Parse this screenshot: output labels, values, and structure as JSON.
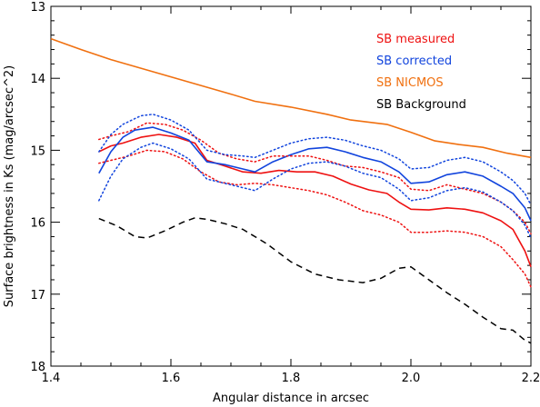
{
  "chart_data": {
    "type": "line",
    "xlabel": "Angular distance in arcsec",
    "ylabel": "Surface brightness in Ks (mag/arcsec^2)",
    "xlim": [
      1.4,
      2.2
    ],
    "ylim": [
      13,
      18
    ],
    "y_inverted": true,
    "x_ticks": [
      1.4,
      1.6,
      1.8,
      2.0,
      2.2
    ],
    "x_tick_labels": [
      "1.4",
      "1.6",
      "1.8",
      "2.0",
      "2.2"
    ],
    "y_ticks": [
      13,
      14,
      15,
      16,
      17,
      18
    ],
    "y_tick_labels": [
      "13",
      "14",
      "15",
      "16",
      "17",
      "18"
    ],
    "grid": false,
    "legend_position": "top-right",
    "series": [
      {
        "name": "SB measured",
        "color": "#ee1111",
        "style": "solid",
        "x": [
          1.48,
          1.5,
          1.52,
          1.55,
          1.58,
          1.61,
          1.64,
          1.66,
          1.69,
          1.72,
          1.75,
          1.78,
          1.81,
          1.84,
          1.87,
          1.9,
          1.93,
          1.96,
          1.98,
          2.0,
          2.03,
          2.06,
          2.09,
          2.12,
          2.15,
          2.17,
          2.19,
          2.2
        ],
        "y": [
          15.02,
          14.94,
          14.9,
          14.82,
          14.78,
          14.82,
          14.9,
          15.14,
          15.22,
          15.3,
          15.32,
          15.28,
          15.3,
          15.3,
          15.36,
          15.47,
          15.55,
          15.6,
          15.72,
          15.82,
          15.83,
          15.8,
          15.82,
          15.87,
          15.98,
          16.1,
          16.4,
          16.62
        ]
      },
      {
        "name": "SB corrected",
        "color": "#1144dd",
        "style": "solid",
        "x": [
          1.48,
          1.5,
          1.52,
          1.54,
          1.57,
          1.6,
          1.63,
          1.66,
          1.69,
          1.72,
          1.74,
          1.77,
          1.8,
          1.83,
          1.86,
          1.89,
          1.92,
          1.95,
          1.98,
          2.0,
          2.03,
          2.06,
          2.09,
          2.12,
          2.15,
          2.17,
          2.19,
          2.2
        ],
        "y": [
          15.32,
          15.02,
          14.82,
          14.72,
          14.68,
          14.76,
          14.86,
          15.16,
          15.2,
          15.26,
          15.3,
          15.16,
          15.06,
          14.98,
          14.96,
          15.02,
          15.1,
          15.16,
          15.3,
          15.46,
          15.44,
          15.34,
          15.3,
          15.36,
          15.5,
          15.6,
          15.8,
          15.98
        ]
      },
      {
        "name": "",
        "color": "#ee1111",
        "style": "dotted",
        "x": [
          1.48,
          1.5,
          1.53,
          1.56,
          1.59,
          1.62,
          1.65,
          1.68,
          1.71,
          1.74,
          1.77,
          1.8,
          1.83,
          1.86,
          1.89,
          1.92,
          1.95,
          1.98,
          2.0,
          2.03,
          2.06,
          2.09,
          2.12,
          2.15,
          2.17,
          2.19,
          2.2
        ],
        "y": [
          14.85,
          14.8,
          14.74,
          14.62,
          14.64,
          14.72,
          14.86,
          15.04,
          15.12,
          15.16,
          15.08,
          15.08,
          15.08,
          15.14,
          15.22,
          15.24,
          15.3,
          15.38,
          15.54,
          15.56,
          15.48,
          15.54,
          15.6,
          15.72,
          15.84,
          16.0,
          16.16
        ]
      },
      {
        "name": "",
        "color": "#ee1111",
        "style": "dotted",
        "x": [
          1.48,
          1.5,
          1.53,
          1.56,
          1.59,
          1.62,
          1.65,
          1.68,
          1.71,
          1.74,
          1.77,
          1.8,
          1.83,
          1.86,
          1.89,
          1.92,
          1.95,
          1.98,
          2.0,
          2.03,
          2.06,
          2.09,
          2.12,
          2.15,
          2.17,
          2.19,
          2.2
        ],
        "y": [
          15.18,
          15.14,
          15.08,
          15.0,
          15.02,
          15.12,
          15.3,
          15.44,
          15.48,
          15.46,
          15.48,
          15.52,
          15.56,
          15.62,
          15.72,
          15.84,
          15.9,
          16.0,
          16.14,
          16.14,
          16.12,
          16.14,
          16.2,
          16.34,
          16.52,
          16.72,
          16.9
        ]
      },
      {
        "name": "",
        "color": "#1144dd",
        "style": "dotted",
        "x": [
          1.48,
          1.5,
          1.52,
          1.55,
          1.57,
          1.6,
          1.63,
          1.66,
          1.69,
          1.72,
          1.74,
          1.77,
          1.8,
          1.83,
          1.86,
          1.89,
          1.92,
          1.95,
          1.98,
          2.0,
          2.03,
          2.06,
          2.09,
          2.12,
          2.15,
          2.17,
          2.19,
          2.2
        ],
        "y": [
          15.02,
          14.78,
          14.64,
          14.52,
          14.5,
          14.58,
          14.72,
          15.0,
          15.06,
          15.08,
          15.1,
          15.0,
          14.9,
          14.84,
          14.82,
          14.86,
          14.94,
          15.0,
          15.12,
          15.26,
          15.24,
          15.14,
          15.1,
          15.16,
          15.3,
          15.42,
          15.6,
          15.76
        ]
      },
      {
        "name": "",
        "color": "#1144dd",
        "style": "dotted",
        "x": [
          1.48,
          1.5,
          1.52,
          1.55,
          1.57,
          1.6,
          1.63,
          1.66,
          1.69,
          1.72,
          1.74,
          1.77,
          1.8,
          1.83,
          1.86,
          1.89,
          1.92,
          1.95,
          1.98,
          2.0,
          2.03,
          2.06,
          2.09,
          2.12,
          2.15,
          2.17,
          2.19,
          2.2
        ],
        "y": [
          15.7,
          15.36,
          15.12,
          14.96,
          14.9,
          14.98,
          15.12,
          15.4,
          15.46,
          15.52,
          15.56,
          15.4,
          15.26,
          15.18,
          15.16,
          15.22,
          15.32,
          15.38,
          15.54,
          15.7,
          15.66,
          15.56,
          15.52,
          15.58,
          15.72,
          15.84,
          16.04,
          16.22
        ]
      },
      {
        "name": "SB NICMOS",
        "color": "#f07010",
        "style": "solid",
        "x": [
          1.4,
          1.45,
          1.5,
          1.55,
          1.6,
          1.65,
          1.7,
          1.74,
          1.8,
          1.86,
          1.9,
          1.96,
          2.0,
          2.04,
          2.08,
          2.12,
          2.16,
          2.2
        ],
        "y": [
          13.45,
          13.6,
          13.74,
          13.86,
          13.98,
          14.1,
          14.22,
          14.32,
          14.4,
          14.5,
          14.58,
          14.64,
          14.75,
          14.87,
          14.92,
          14.96,
          15.04,
          15.1
        ]
      },
      {
        "name": "SB Background",
        "color": "#000000",
        "style": "dashed",
        "x": [
          1.48,
          1.51,
          1.54,
          1.56,
          1.59,
          1.62,
          1.64,
          1.66,
          1.69,
          1.72,
          1.76,
          1.8,
          1.84,
          1.88,
          1.92,
          1.95,
          1.98,
          2.0,
          2.03,
          2.06,
          2.09,
          2.12,
          2.15,
          2.17,
          2.19,
          2.2
        ],
        "y": [
          15.95,
          16.05,
          16.2,
          16.22,
          16.12,
          16.0,
          15.94,
          15.96,
          16.02,
          16.1,
          16.3,
          16.55,
          16.72,
          16.8,
          16.84,
          16.78,
          16.64,
          16.62,
          16.8,
          16.98,
          17.14,
          17.32,
          17.48,
          17.5,
          17.64,
          17.68
        ]
      }
    ]
  }
}
